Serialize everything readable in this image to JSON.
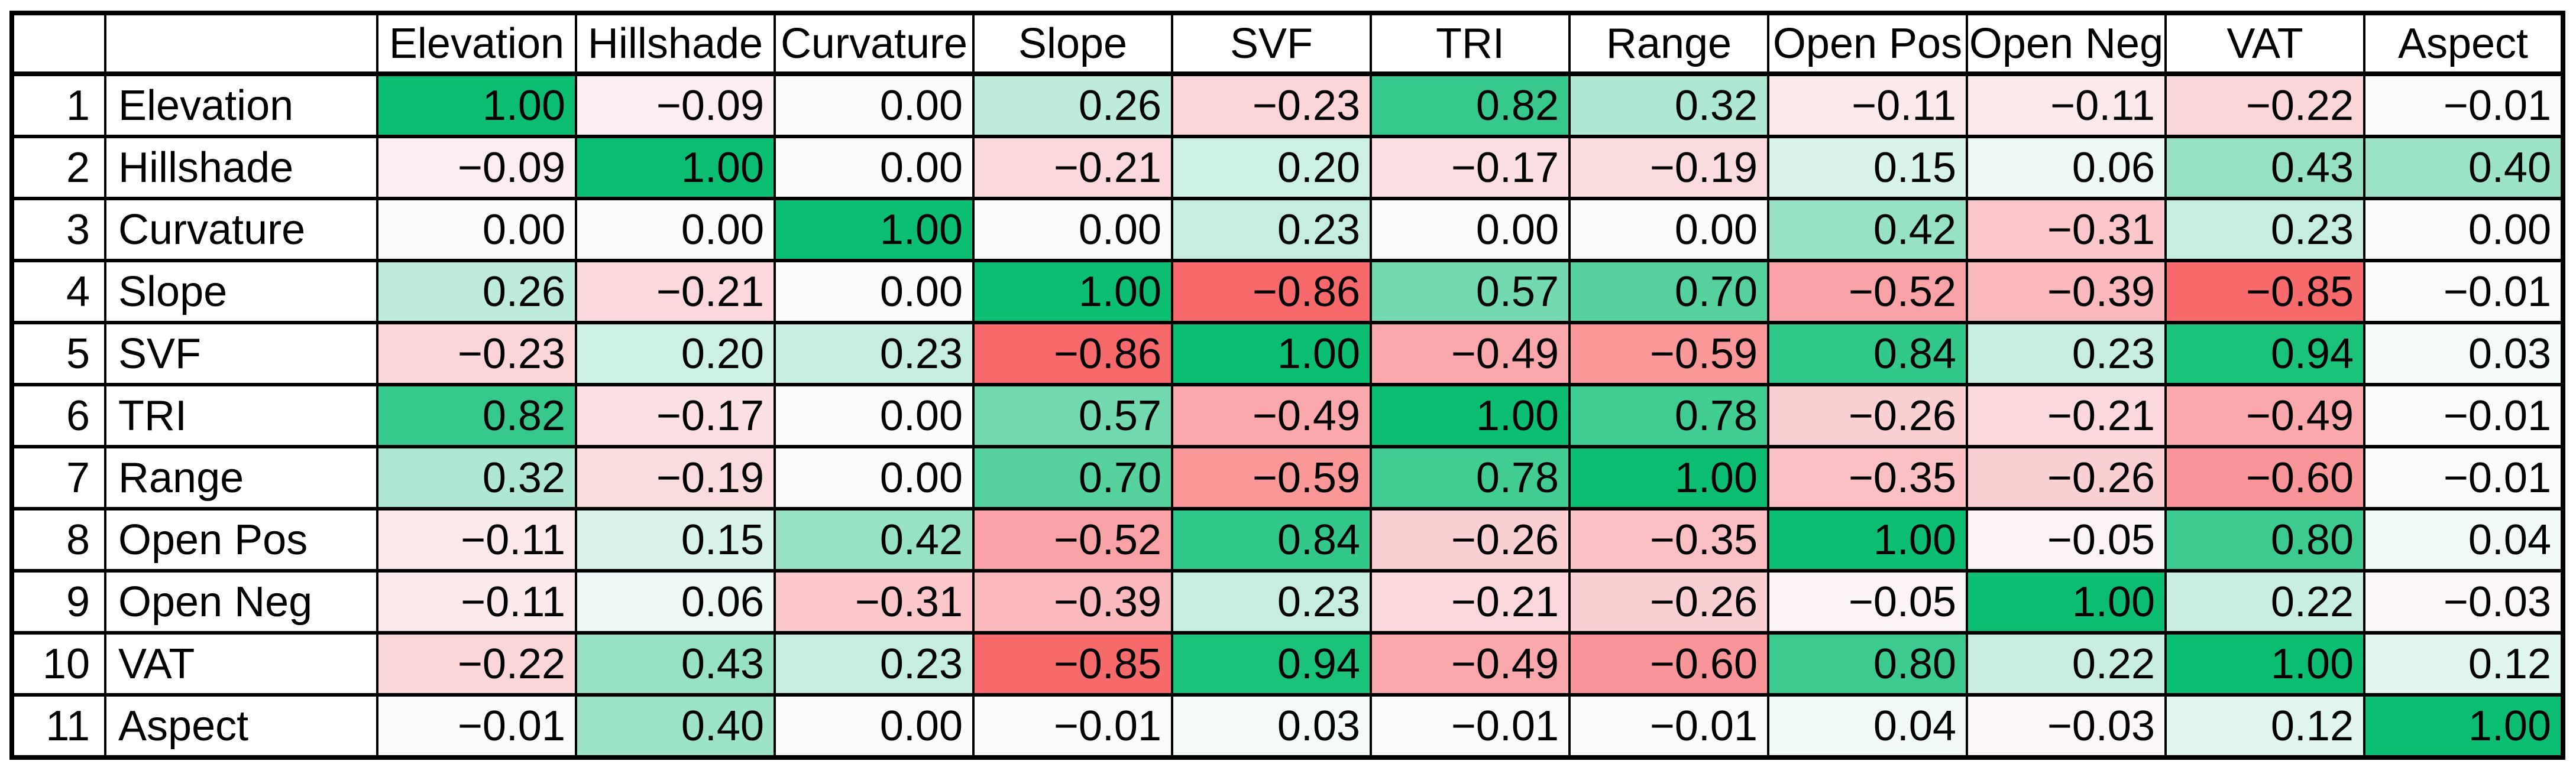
{
  "chart_data": {
    "type": "heatmap",
    "title": "",
    "variables": [
      "Elevation",
      "Hillshade",
      "Curvature",
      "Slope",
      "SVF",
      "TRI",
      "Range",
      "Open Pos",
      "Open Neg",
      "VAT",
      "Aspect"
    ],
    "row_numbers": [
      "1",
      "2",
      "3",
      "4",
      "5",
      "6",
      "7",
      "8",
      "9",
      "10",
      "11"
    ],
    "matrix": [
      [
        1.0,
        -0.09,
        0.0,
        0.26,
        -0.23,
        0.82,
        0.32,
        -0.11,
        -0.11,
        -0.22,
        -0.01
      ],
      [
        -0.09,
        1.0,
        0.0,
        -0.21,
        0.2,
        -0.17,
        -0.19,
        0.15,
        0.06,
        0.43,
        0.4
      ],
      [
        0.0,
        0.0,
        1.0,
        0.0,
        0.23,
        0.0,
        0.0,
        0.42,
        -0.31,
        0.23,
        0.0
      ],
      [
        0.26,
        -0.21,
        0.0,
        1.0,
        -0.86,
        0.57,
        0.7,
        -0.52,
        -0.39,
        -0.85,
        -0.01
      ],
      [
        -0.23,
        0.2,
        0.23,
        -0.86,
        1.0,
        -0.49,
        -0.59,
        0.84,
        0.23,
        0.94,
        0.03
      ],
      [
        0.82,
        -0.17,
        0.0,
        0.57,
        -0.49,
        1.0,
        0.78,
        -0.26,
        -0.21,
        -0.49,
        -0.01
      ],
      [
        0.32,
        -0.19,
        0.0,
        0.7,
        -0.59,
        0.78,
        1.0,
        -0.35,
        -0.26,
        -0.6,
        -0.01
      ],
      [
        -0.11,
        0.15,
        0.42,
        -0.52,
        0.84,
        -0.26,
        -0.35,
        1.0,
        -0.05,
        0.8,
        0.04
      ],
      [
        -0.11,
        0.06,
        -0.31,
        -0.39,
        0.23,
        -0.21,
        -0.26,
        -0.05,
        1.0,
        0.22,
        -0.03
      ],
      [
        -0.22,
        0.43,
        0.23,
        -0.85,
        0.94,
        -0.49,
        -0.6,
        0.8,
        0.22,
        1.0,
        0.12
      ],
      [
        -0.01,
        0.4,
        0.0,
        -0.01,
        0.03,
        -0.01,
        -0.01,
        0.04,
        -0.03,
        0.12,
        1.0
      ]
    ],
    "value_decimals": 2,
    "minus_glyph": "−",
    "color_scale": {
      "min_value": -0.86,
      "mid_value": 0.0,
      "max_value": 1.0,
      "min_color": "#F8696B",
      "mid_color": "#FCFCFF",
      "max_color": "#0CBE72"
    },
    "grid": true,
    "legend_position": "none",
    "xlabel": "",
    "ylabel": ""
  }
}
